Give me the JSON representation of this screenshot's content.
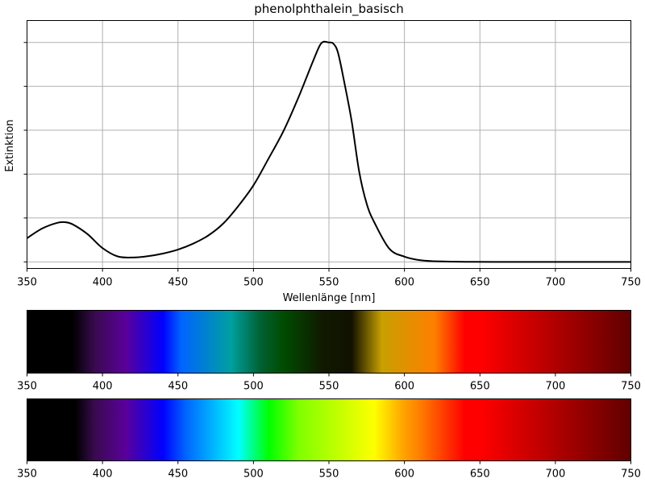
{
  "chart_data": [
    {
      "type": "line",
      "title": "phenolphthalein_basisch",
      "xlabel": "Wellenlänge [nm]",
      "ylabel": "Extinktion",
      "xlim": [
        350,
        750
      ],
      "ylim": [
        -0.03,
        1.1
      ],
      "grid": true,
      "x_ticks": [
        "350",
        "400",
        "450",
        "500",
        "550",
        "600",
        "650",
        "700",
        "750"
      ],
      "y_tick_values": [
        0,
        0.2,
        0.4,
        0.6,
        0.8,
        1.0
      ],
      "y_tick_labels_shown": false,
      "series": [
        {
          "color": "#000000",
          "x": [
            350,
            360,
            370,
            375,
            380,
            390,
            400,
            410,
            420,
            430,
            440,
            450,
            460,
            470,
            480,
            490,
            500,
            510,
            520,
            530,
            540,
            545,
            550,
            553,
            556,
            560,
            565,
            570,
            575,
            580,
            590,
            600,
            610,
            620,
            640,
            660,
            700,
            750
          ],
          "y": [
            0.108,
            0.152,
            0.178,
            0.181,
            0.172,
            0.127,
            0.063,
            0.025,
            0.02,
            0.026,
            0.038,
            0.056,
            0.083,
            0.12,
            0.175,
            0.255,
            0.349,
            0.471,
            0.598,
            0.753,
            0.924,
            0.997,
            1.0,
            0.994,
            0.953,
            0.824,
            0.643,
            0.412,
            0.265,
            0.181,
            0.06,
            0.024,
            0.008,
            0.003,
            0.0005,
            0.0,
            0.0,
            0.0
          ]
        }
      ]
    },
    {
      "type": "heatmap",
      "title": "",
      "description_colors": [
        "#000000",
        "#000000",
        "#3a0a50",
        "#5a009a",
        "#0000ff",
        "#0064ff",
        "#00a0a0",
        "#006030",
        "#004c00",
        "#101a00",
        "#111100",
        "#c8a000",
        "#ff7f00",
        "#ff0000",
        "#ff0000",
        "#c00000",
        "#600000"
      ],
      "color_stops_nm": [
        350,
        380,
        395,
        415,
        440,
        452,
        485,
        505,
        520,
        545,
        565,
        585,
        620,
        640,
        650,
        690,
        750
      ],
      "xlim": [
        350,
        750
      ],
      "x_ticks": [
        "350",
        "400",
        "450",
        "500",
        "550",
        "600",
        "650",
        "700",
        "750"
      ]
    },
    {
      "type": "heatmap",
      "title": "",
      "description_colors": [
        "#000000",
        "#000000",
        "#3a0a50",
        "#5a009a",
        "#0000ff",
        "#0064ff",
        "#00ffff",
        "#00ff00",
        "#80ff00",
        "#ffff00",
        "#ffa000",
        "#ff7f00",
        "#ff0000",
        "#ff0000",
        "#c00000",
        "#600000"
      ],
      "color_stops_nm": [
        350,
        382,
        395,
        415,
        440,
        455,
        490,
        510,
        530,
        580,
        600,
        610,
        640,
        650,
        690,
        750
      ],
      "xlim": [
        350,
        750
      ],
      "x_ticks": [
        "350",
        "400",
        "450",
        "500",
        "550",
        "600",
        "650",
        "700",
        "750"
      ]
    }
  ]
}
